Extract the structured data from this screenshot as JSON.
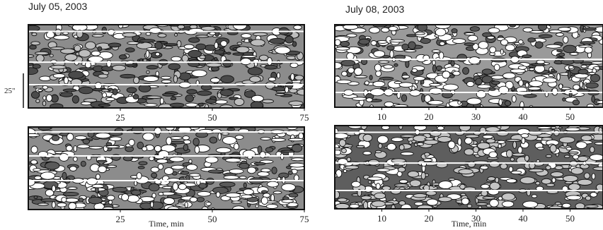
{
  "chart_data": [
    {
      "type": "contour",
      "title": "July 05, 2003",
      "xlim": [
        0,
        75
      ],
      "xticks": [
        25,
        50,
        75
      ],
      "annotation": "25\""
    },
    {
      "type": "contour",
      "xlabel": "Time, min",
      "xlim": [
        0,
        75
      ],
      "xticks": [
        25,
        50,
        75
      ]
    },
    {
      "type": "contour",
      "title": "July 08, 2003",
      "xlim": [
        0,
        57
      ],
      "xticks": [
        10,
        20,
        30,
        40,
        50
      ]
    },
    {
      "type": "contour",
      "xlabel": "Time, min",
      "xlim": [
        0,
        57
      ],
      "xticks": [
        10,
        20,
        30,
        40,
        50
      ]
    }
  ]
}
